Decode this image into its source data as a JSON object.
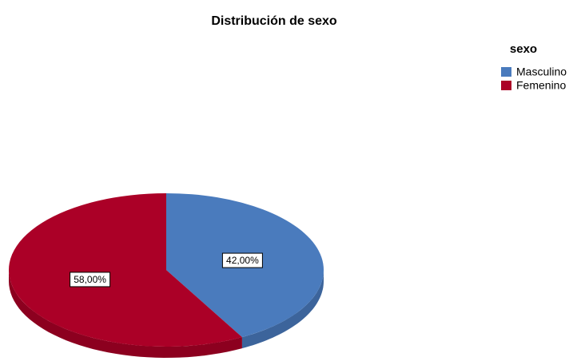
{
  "chart_data": {
    "type": "pie",
    "title": "Distribución de sexo",
    "legend_title": "sexo",
    "categories": [
      "Masculino",
      "Femenino"
    ],
    "values": [
      42,
      58
    ],
    "value_labels": [
      "42,00%",
      "58,00%"
    ],
    "colors": [
      "#4a7bbd",
      "#ab0027"
    ],
    "legend": "top-right"
  }
}
